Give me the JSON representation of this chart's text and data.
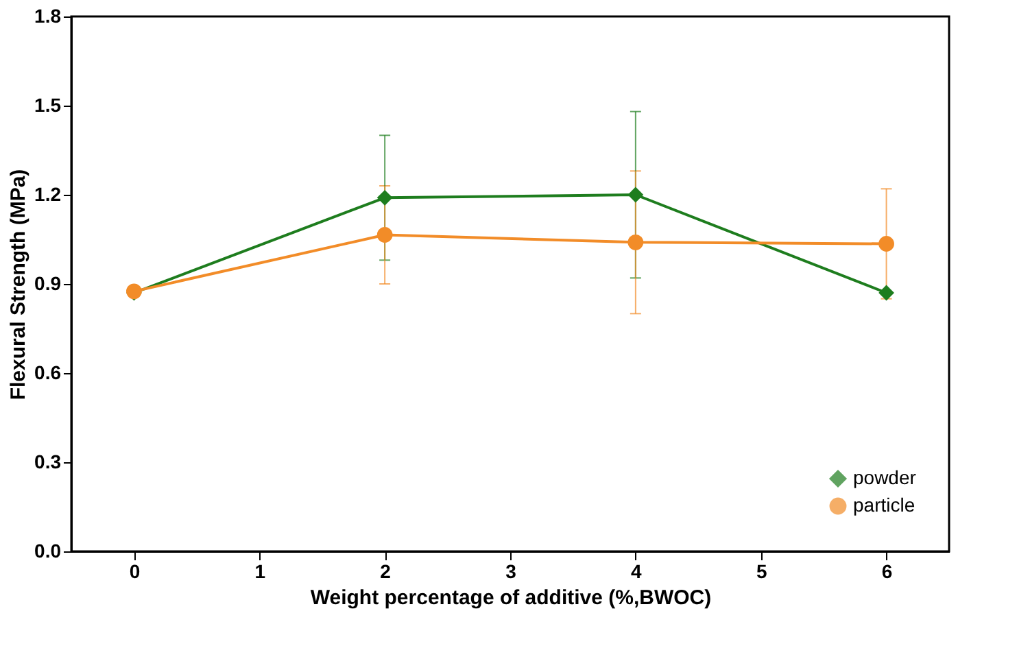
{
  "chart_data": {
    "type": "line",
    "xlabel": "Weight percentage of additive (%,BWOC)",
    "ylabel": "Flexural Strength (MPa)",
    "x": [
      0,
      2,
      4,
      6
    ],
    "series": [
      {
        "name": "powder",
        "color": "#1e7d1e",
        "marker": "diamond",
        "values": [
          0.87,
          1.19,
          1.2,
          0.87
        ],
        "errors": [
          null,
          0.21,
          0.28,
          null
        ]
      },
      {
        "name": "particle",
        "color": "#f28c28",
        "marker": "circle",
        "values": [
          0.875,
          1.065,
          1.04,
          1.035
        ],
        "errors": [
          null,
          0.165,
          0.24,
          0.185
        ]
      }
    ],
    "xlim": [
      -0.5,
      6.5
    ],
    "xticks": [
      0,
      1,
      2,
      3,
      4,
      5,
      6
    ],
    "ylim": [
      0,
      1.8
    ],
    "yticks": [
      {
        "value": 0,
        "label": "0.0"
      },
      0.3,
      0.6,
      0.9,
      1.2,
      1.5,
      1.8
    ],
    "grid": false,
    "legend": "bottom right",
    "line_style": "solid"
  }
}
